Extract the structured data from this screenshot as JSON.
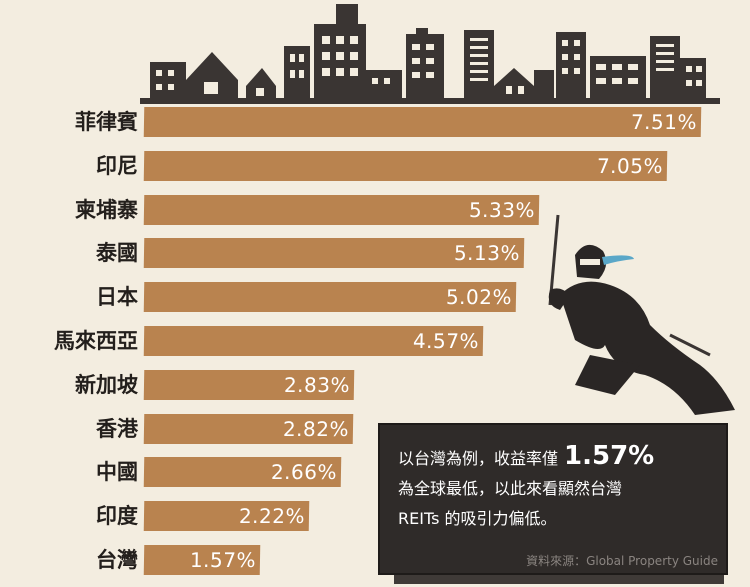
{
  "colors": {
    "bar": "#b9834f",
    "background": "#f3ede0",
    "dark": "#2f2b29"
  },
  "chart_data": {
    "type": "bar",
    "orientation": "horizontal",
    "categories": [
      "菲律賓",
      "印尼",
      "柬埔寨",
      "泰國",
      "日本",
      "馬來西亞",
      "新加坡",
      "香港",
      "中國",
      "印度",
      "台灣"
    ],
    "values": [
      7.51,
      7.05,
      5.33,
      5.13,
      5.02,
      4.57,
      2.83,
      2.82,
      2.66,
      2.22,
      1.57
    ],
    "value_labels": [
      "7.51%",
      "7.05%",
      "5.33%",
      "5.13%",
      "5.02%",
      "4.57%",
      "2.83%",
      "2.82%",
      "2.66%",
      "2.22%",
      "1.57%"
    ],
    "grid": false
  },
  "note": {
    "line1_prefix": "以台灣為例，收益率僅",
    "line1_value": "1.57%",
    "line2": "為全球最低，以此來看顯然台灣",
    "line3": "REITs 的吸引力偏低。",
    "source": "資料來源：Global Property Guide"
  },
  "illustrations": [
    "city-skyline",
    "ninja-with-sword"
  ]
}
